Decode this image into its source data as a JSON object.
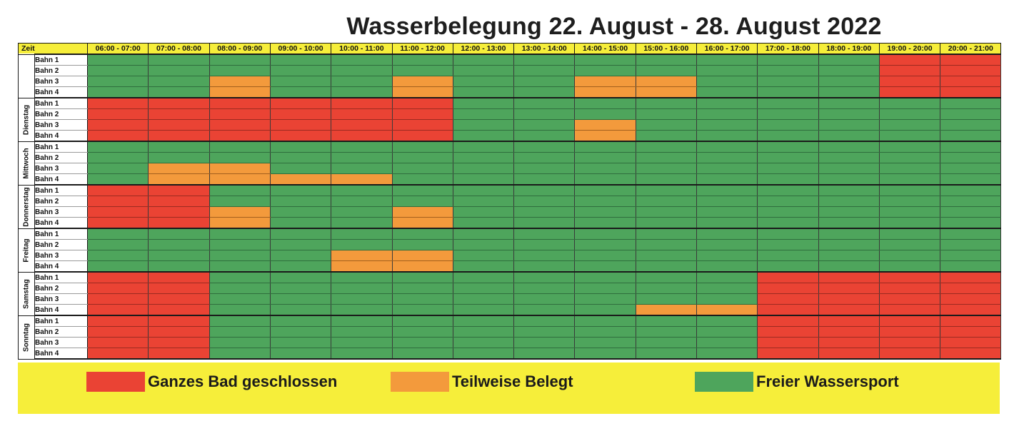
{
  "title": "Wasserbelegung 22. August - 28. August 2022",
  "header": {
    "zeit_label": "Zeit",
    "slots": [
      "06:00 - 07:00",
      "07:00 - 08:00",
      "08:00 - 09:00",
      "09:00 - 10:00",
      "10:00 - 11:00",
      "11:00 - 12:00",
      "12:00 - 13:00",
      "13:00 - 14:00",
      "14:00 - 15:00",
      "15:00 - 16:00",
      "16:00 - 17:00",
      "17:00 - 18:00",
      "18:00 - 19:00",
      "19:00 - 20:00",
      "20:00 - 21:00"
    ]
  },
  "colors": {
    "r": "#ea4334",
    "o": "#f39a3c",
    "g": "#4ea55c",
    "header_yellow": "#f6ee3a"
  },
  "lane_labels": [
    "Bahn 1",
    "Bahn 2",
    "Bahn 3",
    "Bahn 4"
  ],
  "status_key": {
    "r": "Ganzes Bad geschlossen",
    "o": "Teilweise Belegt",
    "g": "Freier Wassersport"
  },
  "days": [
    {
      "label": "",
      "lanes": [
        "ggggggggggggg rr",
        "ggggggggggggg rr",
        "ggoggoggooggg rr",
        "ggoggoggooggg rr"
      ]
    },
    {
      "label": "Dienstag",
      "lanes": [
        "rrrrrrggggggg gg",
        "rrrrrrggggggg gg",
        "rrrrrrggogggg gg",
        "rrrrrrggogggg gg"
      ]
    },
    {
      "label": "Mittwoch",
      "lanes": [
        "ggggggggggggg gg",
        "ggggggggggggg gg",
        "googgggggggggg g",
        "gooooggggggggg g"
      ]
    },
    {
      "label": "Donnerstag",
      "lanes": [
        "rrggggggggggg gg",
        "rrggggggggggg gg",
        "rroggogggggggg g",
        "rroggogggggggg g"
      ]
    },
    {
      "label": "Freitag",
      "lanes": [
        "ggggggggggggg gg",
        "ggggggggggggg gg",
        "ggggoogggggggg g",
        "ggggoogggggggg g"
      ]
    },
    {
      "label": "Samstag",
      "lanes": [
        "rrgggggggggrr rr",
        "rrgggggggggrr rr",
        "rrgggggggggrr rr",
        "rrgggggggoorr rr"
      ]
    },
    {
      "label": "Sonntag",
      "lanes": [
        "rrgggggggggrr rr",
        "rrgggggggggrr rr",
        "rrgggggggggrr rr",
        "rrgggggggggrr rr"
      ]
    }
  ],
  "legend": [
    {
      "key": "r",
      "label": "Ganzes Bad geschlossen"
    },
    {
      "key": "o",
      "label": "Teilweise Belegt"
    },
    {
      "key": "g",
      "label": "Freier Wassersport"
    }
  ]
}
